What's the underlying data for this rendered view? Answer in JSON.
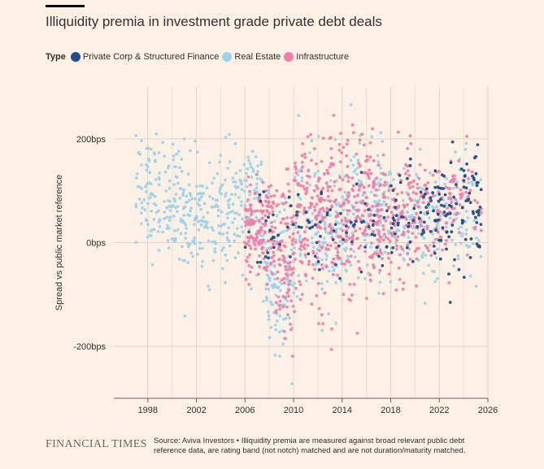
{
  "header": {
    "title": "Illiquidity premia in investment grade private debt deals"
  },
  "legend": {
    "title": "Type",
    "items": [
      {
        "label": "Private Corp & Structured Finance",
        "color": "#1f4f8a"
      },
      {
        "label": "Real Estate",
        "color": "#9dd3ec"
      },
      {
        "label": "Infrastructure",
        "color": "#f07fa8"
      }
    ]
  },
  "footer": {
    "brand": "FINANCIAL TIMES",
    "source": "Source: Aviva Investors • Illiquidity premia are measured against broad relevant public debt reference data, are rating band (not notch) matched and are not duration/maturity matched."
  },
  "chart_data": {
    "type": "scatter",
    "title": "Illiquidity premia in investment grade private debt deals",
    "xlabel": "",
    "ylabel": "Spread vs public market reference",
    "xlim": [
      1995.2,
      2026
    ],
    "ylim": [
      -300,
      300
    ],
    "x_ticks": [
      1998,
      2002,
      2006,
      2010,
      2014,
      2018,
      2022,
      2026
    ],
    "x_tick_labels": [
      "1998",
      "2002",
      "2006",
      "2010",
      "2014",
      "2018",
      "2022",
      "2026"
    ],
    "y_ticks": [
      200,
      0,
      -200
    ],
    "y_tick_labels": [
      "200bps",
      "0bps",
      "-200bps"
    ],
    "grid": true,
    "series": [
      {
        "name": "Real Estate",
        "color": "#9dd3ec",
        "clusters": [
          {
            "x0": 1997.0,
            "x1": 2001.0,
            "mean": 90,
            "sd": 55,
            "n": 150
          },
          {
            "x0": 2001.0,
            "x1": 2005.0,
            "mean": 50,
            "sd": 55,
            "n": 150
          },
          {
            "x0": 2005.0,
            "x1": 2007.5,
            "mean": 70,
            "sd": 55,
            "n": 100
          },
          {
            "x0": 2007.5,
            "x1": 2010.0,
            "mean": -80,
            "sd": 75,
            "n": 120
          },
          {
            "x0": 2010.0,
            "x1": 2014.0,
            "mean": 30,
            "sd": 70,
            "n": 140
          },
          {
            "x0": 2014.0,
            "x1": 2018.0,
            "mean": 60,
            "sd": 65,
            "n": 150
          },
          {
            "x0": 2018.0,
            "x1": 2022.0,
            "mean": 40,
            "sd": 55,
            "n": 110
          },
          {
            "x0": 2022.0,
            "x1": 2025.5,
            "mean": 60,
            "sd": 55,
            "n": 70
          }
        ]
      },
      {
        "name": "Infrastructure",
        "color": "#f07fa8",
        "clusters": [
          {
            "x0": 2006.0,
            "x1": 2008.5,
            "mean": 20,
            "sd": 50,
            "n": 150
          },
          {
            "x0": 2008.5,
            "x1": 2010.0,
            "mean": -40,
            "sd": 80,
            "n": 90
          },
          {
            "x0": 2010.0,
            "x1": 2013.0,
            "mean": 40,
            "sd": 75,
            "n": 160
          },
          {
            "x0": 2013.0,
            "x1": 2016.5,
            "mean": 60,
            "sd": 80,
            "n": 190
          },
          {
            "x0": 2016.5,
            "x1": 2020.0,
            "mean": 50,
            "sd": 60,
            "n": 160
          },
          {
            "x0": 2020.0,
            "x1": 2023.0,
            "mean": 50,
            "sd": 55,
            "n": 90
          },
          {
            "x0": 2023.0,
            "x1": 2025.5,
            "mean": 80,
            "sd": 50,
            "n": 40
          }
        ]
      },
      {
        "name": "Private Corp & Structured Finance",
        "color": "#1f4f8a",
        "clusters": [
          {
            "x0": 2006.0,
            "x1": 2010.0,
            "mean": 20,
            "sd": 40,
            "n": 25
          },
          {
            "x0": 2010.0,
            "x1": 2014.0,
            "mean": 20,
            "sd": 50,
            "n": 30
          },
          {
            "x0": 2014.0,
            "x1": 2018.0,
            "mean": 30,
            "sd": 50,
            "n": 30
          },
          {
            "x0": 2018.0,
            "x1": 2021.0,
            "mean": 40,
            "sd": 50,
            "n": 40
          },
          {
            "x0": 2021.0,
            "x1": 2025.5,
            "mean": 50,
            "sd": 55,
            "n": 100
          }
        ]
      }
    ]
  }
}
